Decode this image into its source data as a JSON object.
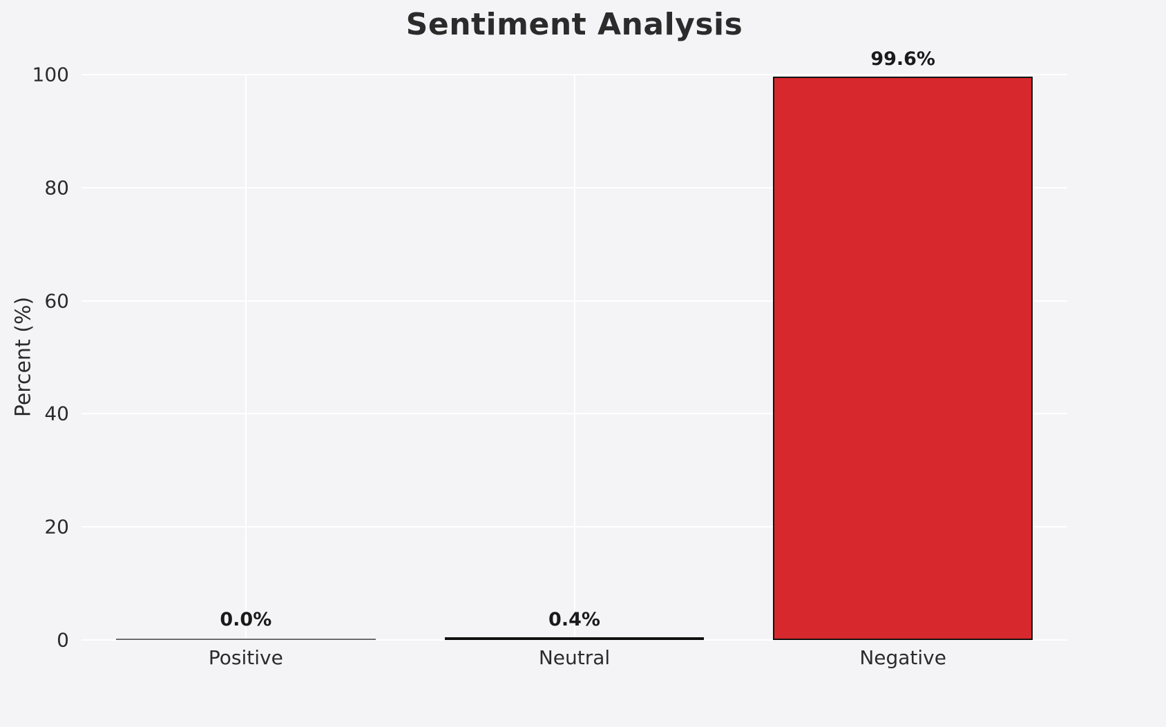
{
  "chart_data": {
    "type": "bar",
    "title": "Sentiment Analysis",
    "xlabel": "",
    "ylabel": "Percent (%)",
    "categories": [
      "Positive",
      "Neutral",
      "Negative"
    ],
    "values": [
      0.0,
      0.4,
      99.6
    ],
    "value_labels": [
      "0.0%",
      "0.4%",
      "99.6%"
    ],
    "yticks": [
      0,
      20,
      40,
      60,
      80,
      100
    ],
    "ylim": [
      0,
      100
    ],
    "grid": true,
    "legend": "none",
    "colors": {
      "background": "#f4f4f6",
      "gridline": "#ffffff",
      "bar_fill": "#d7282d",
      "bar_edge": "#111111",
      "zero_bar_line": "#6b6b6b",
      "text": "#2b2b2b"
    }
  }
}
